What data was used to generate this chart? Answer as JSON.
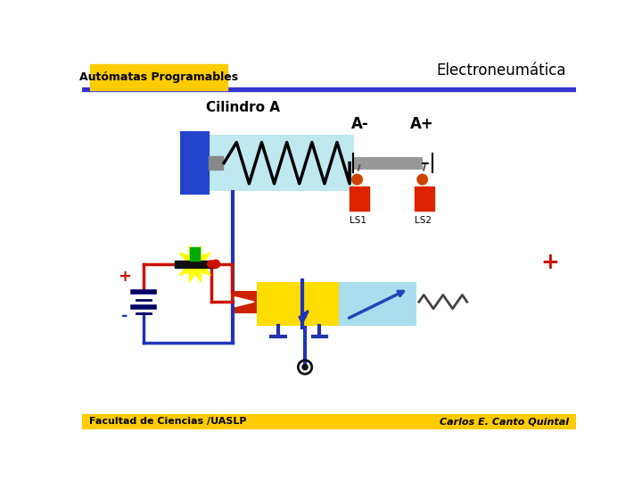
{
  "title": "Electroneumática",
  "subtitle": "Autómatas Programables",
  "cylinder_label": "Cilindro A",
  "am_label": "A-",
  "ap_label": "A+",
  "ls1_label": "LS1",
  "ls2_label": "LS2",
  "footer_left": "Facultad de Ciencias /UASLP",
  "footer_right": "Carlos E. Canto Quintal",
  "bg_color": "#ffffff",
  "header_bar_color": "#3333cc",
  "title_bg": "#ffcc00",
  "blue_wire": "#2233bb",
  "red_wire": "#cc1100",
  "cylinder_body_color": "#c0e8f0",
  "cylinder_cap_color": "#2244cc",
  "piston_color": "#888888",
  "ls_body_color": "#dd2200",
  "ls_ball_color": "#cc4400",
  "valve_yellow": "#ffdd00",
  "valve_blue": "#aaddee",
  "relay_yellow": "#ffff00",
  "footer_bg": "#ffcc00",
  "solenoid_red": "#cc2200",
  "spring_color": "#444444"
}
